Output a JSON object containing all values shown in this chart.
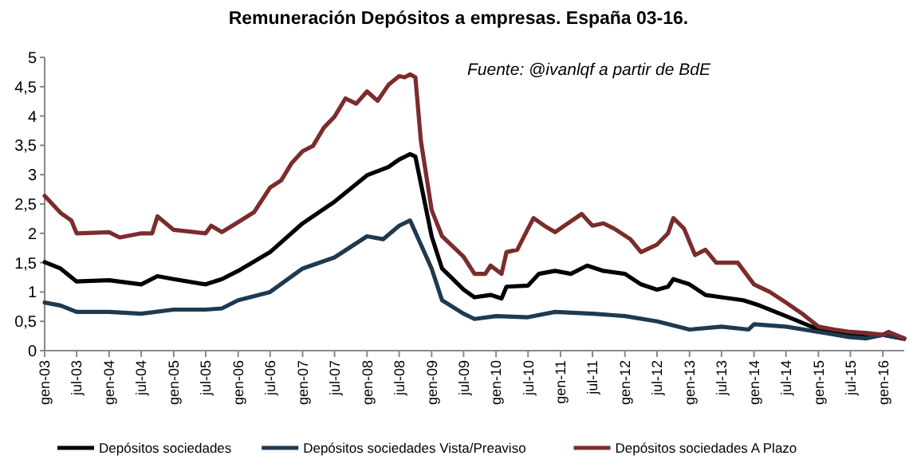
{
  "chart_data": {
    "type": "line",
    "title": "Remuneración Depósitos a empresas. España 03-16.",
    "annotations": [
      "Fuente: @ivanlqf a partir de BdE"
    ],
    "xlim": [
      "2003-01",
      "2016-05"
    ],
    "xticks": [
      {
        "value": "2003-01",
        "label": "gen-03"
      },
      {
        "value": "2003-07",
        "label": "jul-03"
      },
      {
        "value": "2004-01",
        "label": "gen-04"
      },
      {
        "value": "2004-07",
        "label": "jul-04"
      },
      {
        "value": "2005-01",
        "label": "gen-05"
      },
      {
        "value": "2005-07",
        "label": "jul-05"
      },
      {
        "value": "2006-01",
        "label": "gen-06"
      },
      {
        "value": "2006-07",
        "label": "jul-06"
      },
      {
        "value": "2007-01",
        "label": "gen-07"
      },
      {
        "value": "2007-07",
        "label": "jul-07"
      },
      {
        "value": "2008-01",
        "label": "gen-08"
      },
      {
        "value": "2008-07",
        "label": "jul-08"
      },
      {
        "value": "2009-01",
        "label": "gen-09"
      },
      {
        "value": "2009-07",
        "label": "jul-09"
      },
      {
        "value": "2010-01",
        "label": "gen-10"
      },
      {
        "value": "2010-07",
        "label": "jul-10"
      },
      {
        "value": "2011-01",
        "label": "gen-11"
      },
      {
        "value": "2011-07",
        "label": "jul-11"
      },
      {
        "value": "2012-01",
        "label": "gen-12"
      },
      {
        "value": "2012-07",
        "label": "jul-12"
      },
      {
        "value": "2013-01",
        "label": "gen-13"
      },
      {
        "value": "2013-07",
        "label": "jul-13"
      },
      {
        "value": "2014-01",
        "label": "gen-14"
      },
      {
        "value": "2014-07",
        "label": "jul-14"
      },
      {
        "value": "2015-01",
        "label": "gen-15"
      },
      {
        "value": "2015-07",
        "label": "jul-15"
      },
      {
        "value": "2016-01",
        "label": "gen-16"
      }
    ],
    "ylim": [
      0,
      5
    ],
    "yticks": [
      0,
      {
        "value": 0.5,
        "label": "0,5"
      },
      1,
      {
        "value": 1.5,
        "label": "1,5"
      },
      2,
      {
        "value": 2.5,
        "label": "2,5"
      },
      3,
      {
        "value": 3.5,
        "label": "3,5"
      },
      4,
      {
        "value": 4.5,
        "label": "4,5"
      },
      5
    ],
    "grid": false,
    "legend": "bottom",
    "marker": "none",
    "line_style": "solid",
    "series": [
      {
        "name": "Depósitos sociedades",
        "color": "#000000",
        "x": [
          "2003-01",
          "2003-04",
          "2003-07",
          "2004-01",
          "2004-07",
          "2004-10",
          "2005-01",
          "2005-07",
          "2005-10",
          "2006-01",
          "2006-07",
          "2007-01",
          "2007-07",
          "2008-01",
          "2008-05",
          "2008-07",
          "2008-09",
          "2008-10",
          "2009-01",
          "2009-03",
          "2009-07",
          "2009-09",
          "2009-12",
          "2010-02",
          "2010-03",
          "2010-07",
          "2010-09",
          "2010-12",
          "2011-03",
          "2011-06",
          "2011-09",
          "2012-01",
          "2012-04",
          "2012-07",
          "2012-09",
          "2012-10",
          "2013-01",
          "2013-04",
          "2013-07",
          "2013-11",
          "2014-02",
          "2014-07",
          "2015-01",
          "2015-07",
          "2015-10",
          "2016-01",
          "2016-05"
        ],
        "values": [
          1.51,
          1.4,
          1.18,
          1.2,
          1.13,
          1.27,
          1.22,
          1.13,
          1.22,
          1.36,
          1.68,
          2.17,
          2.54,
          2.99,
          3.13,
          3.26,
          3.35,
          3.31,
          1.95,
          1.4,
          1.04,
          0.91,
          0.95,
          0.89,
          1.09,
          1.11,
          1.31,
          1.36,
          1.31,
          1.45,
          1.36,
          1.31,
          1.13,
          1.04,
          1.09,
          1.22,
          1.13,
          0.95,
          0.91,
          0.86,
          0.77,
          0.59,
          0.36,
          0.27,
          0.23,
          0.27,
          0.2
        ]
      },
      {
        "name": "Depósitos sociedades Vista/Preaviso",
        "color": "#1f3a4f",
        "x": [
          "2003-01",
          "2003-04",
          "2003-07",
          "2004-01",
          "2004-07",
          "2005-01",
          "2005-07",
          "2005-10",
          "2006-01",
          "2006-07",
          "2007-01",
          "2007-07",
          "2008-01",
          "2008-04",
          "2008-07",
          "2008-09",
          "2008-11",
          "2009-01",
          "2009-03",
          "2009-07",
          "2009-09",
          "2010-01",
          "2010-07",
          "2010-12",
          "2011-07",
          "2012-01",
          "2012-07",
          "2013-01",
          "2013-07",
          "2013-12",
          "2014-01",
          "2014-07",
          "2015-01",
          "2015-07",
          "2015-10",
          "2016-01",
          "2016-05"
        ],
        "values": [
          0.82,
          0.77,
          0.66,
          0.66,
          0.63,
          0.7,
          0.7,
          0.72,
          0.86,
          1.0,
          1.4,
          1.59,
          1.95,
          1.9,
          2.13,
          2.22,
          1.81,
          1.4,
          0.86,
          0.63,
          0.54,
          0.59,
          0.57,
          0.66,
          0.63,
          0.59,
          0.5,
          0.36,
          0.41,
          0.36,
          0.45,
          0.41,
          0.32,
          0.23,
          0.21,
          0.27,
          0.21
        ]
      },
      {
        "name": "Depósitos sociedades A Plazo",
        "color": "#7b2c2c",
        "x": [
          "2003-01",
          "2003-04",
          "2003-06",
          "2003-07",
          "2004-01",
          "2004-03",
          "2004-07",
          "2004-09",
          "2004-10",
          "2005-01",
          "2005-07",
          "2005-08",
          "2005-10",
          "2006-01",
          "2006-04",
          "2006-07",
          "2006-09",
          "2006-11",
          "2007-01",
          "2007-03",
          "2007-05",
          "2007-07",
          "2007-09",
          "2007-11",
          "2008-01",
          "2008-03",
          "2008-05",
          "2008-07",
          "2008-08",
          "2008-09",
          "2008-10",
          "2008-11",
          "2009-01",
          "2009-03",
          "2009-07",
          "2009-09",
          "2009-11",
          "2009-12",
          "2010-02",
          "2010-03",
          "2010-05",
          "2010-07",
          "2010-08",
          "2010-10",
          "2010-12",
          "2011-02",
          "2011-05",
          "2011-07",
          "2011-09",
          "2011-11",
          "2012-02",
          "2012-04",
          "2012-07",
          "2012-09",
          "2012-10",
          "2012-12",
          "2013-02",
          "2013-04",
          "2013-06",
          "2013-10",
          "2014-01",
          "2014-04",
          "2014-07",
          "2014-10",
          "2015-01",
          "2015-04",
          "2015-07",
          "2015-10",
          "2016-01",
          "2016-02",
          "2016-05"
        ],
        "values": [
          2.64,
          2.35,
          2.22,
          2.0,
          2.02,
          1.93,
          2.0,
          2.0,
          2.29,
          2.06,
          2.0,
          2.13,
          2.02,
          2.19,
          2.36,
          2.78,
          2.9,
          3.2,
          3.4,
          3.49,
          3.8,
          3.99,
          4.3,
          4.21,
          4.42,
          4.26,
          4.53,
          4.68,
          4.66,
          4.71,
          4.66,
          3.58,
          2.4,
          1.95,
          1.6,
          1.31,
          1.31,
          1.45,
          1.31,
          1.68,
          1.72,
          2.08,
          2.26,
          2.13,
          2.02,
          2.15,
          2.33,
          2.13,
          2.17,
          2.08,
          1.9,
          1.68,
          1.81,
          2.0,
          2.26,
          2.08,
          1.63,
          1.72,
          1.5,
          1.5,
          1.13,
          1.0,
          0.82,
          0.63,
          0.41,
          0.36,
          0.32,
          0.3,
          0.27,
          0.32,
          0.21
        ]
      }
    ]
  }
}
